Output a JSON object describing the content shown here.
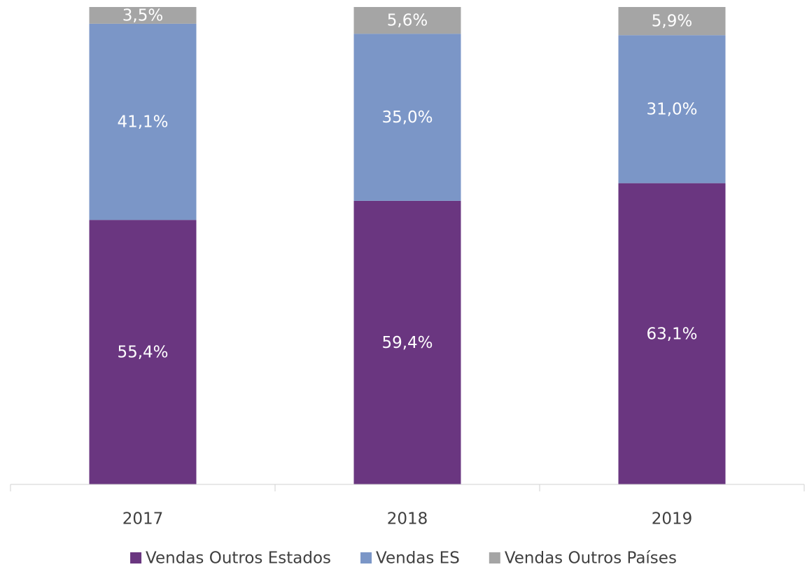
{
  "chart_data": {
    "type": "stacked_bar",
    "categories": [
      "2017",
      "2018",
      "2019"
    ],
    "series": [
      {
        "name": "Vendas Outros Estados",
        "color": "#6a3680",
        "values": [
          55.4,
          59.4,
          63.1
        ],
        "value_labels": [
          "55,4%",
          "59,4%",
          "63,1%"
        ]
      },
      {
        "name": "Vendas ES",
        "color": "#7b96c7",
        "values": [
          41.1,
          35.0,
          31.0
        ],
        "value_labels": [
          "41,1%",
          "35,0%",
          "31,0%"
        ]
      },
      {
        "name": "Vendas Outros Países",
        "color": "#a5a5a5",
        "values": [
          3.5,
          5.6,
          5.9
        ],
        "value_labels": [
          "3,5%",
          "5,6%",
          "5,9%"
        ]
      }
    ],
    "ylim": [
      0,
      100
    ],
    "legend": "bottom"
  }
}
